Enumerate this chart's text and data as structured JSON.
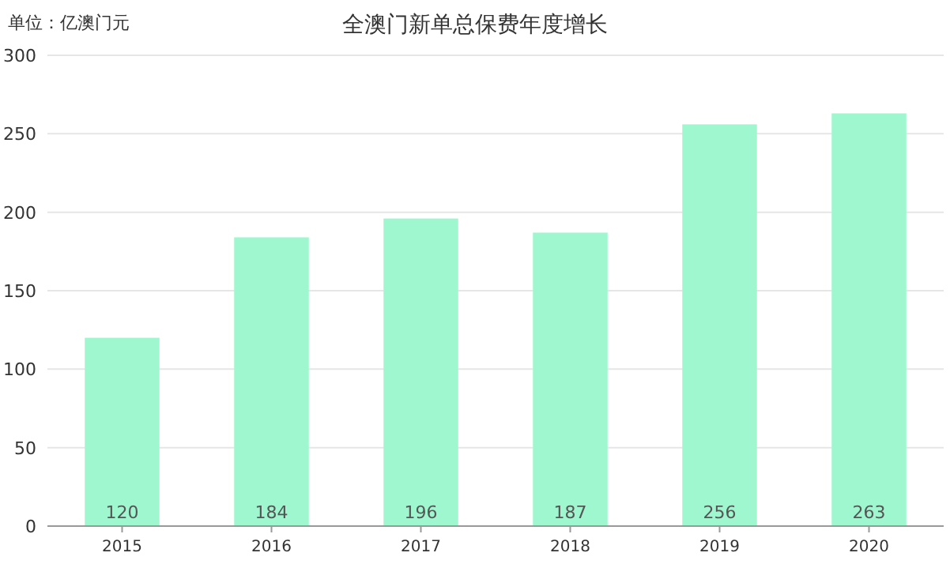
{
  "chart_data": {
    "type": "bar",
    "title": "全澳门新单总保费年度增长",
    "ylabel": "单位：亿澳门元",
    "categories": [
      "2015",
      "2016",
      "2017",
      "2018",
      "2019",
      "2020"
    ],
    "values": [
      120,
      184,
      196,
      187,
      256,
      263
    ],
    "color": "#9ef7cf",
    "ylim": [
      0,
      300
    ],
    "yticks": [
      0,
      50,
      100,
      150,
      200,
      250,
      300
    ],
    "grid": "y",
    "data_labels": true
  }
}
